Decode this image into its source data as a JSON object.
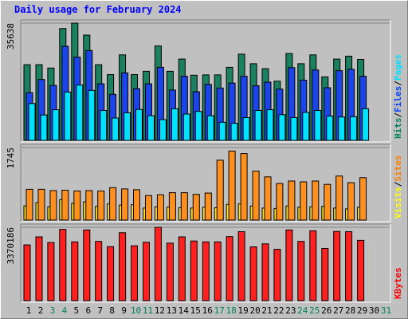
{
  "title": "Daily usage for February 2024",
  "chart_data": [
    {
      "type": "bar",
      "panel": "hits-files-pages",
      "max_label": "35638",
      "ylim": [
        0,
        35638
      ],
      "categories": [
        "1",
        "2",
        "3",
        "4",
        "5",
        "6",
        "7",
        "8",
        "9",
        "10",
        "11",
        "12",
        "13",
        "14",
        "15",
        "16",
        "17",
        "18",
        "19",
        "20",
        "21",
        "22",
        "23",
        "24",
        "25",
        "26",
        "27",
        "28",
        "29",
        "30",
        "31"
      ],
      "weekend_days": [
        "3",
        "4",
        "10",
        "11",
        "17",
        "18",
        "24",
        "25",
        "31"
      ],
      "legend": [
        {
          "text": "Hits",
          "color": "#00805c"
        },
        {
          "text": "/",
          "color": "#000000"
        },
        {
          "text": "Files",
          "color": "#0040ff"
        },
        {
          "text": "/",
          "color": "#000000"
        },
        {
          "text": "Pages",
          "color": "#00e0ff"
        }
      ],
      "series": [
        {
          "name": "Hits",
          "color": "#1a8060",
          "values": [
            23000,
            23000,
            22000,
            34000,
            35638,
            32000,
            23000,
            20000,
            26000,
            20000,
            21000,
            28700,
            21000,
            24700,
            19800,
            19900,
            19900,
            22200,
            26200,
            23300,
            21800,
            18000,
            26400,
            23300,
            26000,
            19300,
            24700,
            25600,
            24600,
            0,
            0
          ]
        },
        {
          "name": "Files",
          "color": "#1b45e8",
          "values": [
            14500,
            18500,
            16700,
            28600,
            25300,
            27300,
            17200,
            14000,
            20500,
            15700,
            17200,
            22200,
            15300,
            19500,
            14800,
            17000,
            15900,
            17400,
            19500,
            16600,
            17700,
            15600,
            22100,
            18300,
            21400,
            16000,
            21200,
            21600,
            19500,
            0,
            0
          ]
        },
        {
          "name": "Pages",
          "color": "#00e0ff",
          "values": [
            11200,
            7700,
            9300,
            14700,
            16800,
            15200,
            9100,
            6800,
            8400,
            9400,
            7500,
            6300,
            9600,
            8000,
            8800,
            7500,
            5500,
            5200,
            6900,
            9100,
            9300,
            7800,
            6900,
            8500,
            9100,
            7400,
            7100,
            7200,
            9600,
            0,
            0
          ]
        }
      ]
    },
    {
      "type": "bar",
      "panel": "visits-sites",
      "max_label": "1745",
      "ylim": [
        0,
        1745
      ],
      "legend": [
        {
          "text": "Visits",
          "color": "#ffff00"
        },
        {
          "text": "/",
          "color": "#000000"
        },
        {
          "text": "Sites",
          "color": "#ff8000"
        }
      ],
      "series": [
        {
          "name": "Visits",
          "color": "#ffe020",
          "values": [
            340,
            420,
            320,
            490,
            400,
            440,
            330,
            390,
            360,
            370,
            290,
            320,
            310,
            300,
            290,
            310,
            300,
            380,
            390,
            340,
            290,
            280,
            340,
            310,
            320,
            330,
            290,
            270,
            310,
            0,
            0
          ]
        },
        {
          "name": "Sites",
          "color": "#ff9020",
          "values": [
            740,
            740,
            710,
            720,
            700,
            710,
            700,
            780,
            750,
            730,
            590,
            610,
            660,
            660,
            620,
            650,
            1440,
            1660,
            1600,
            1180,
            1040,
            880,
            940,
            920,
            940,
            860,
            1060,
            900,
            1020,
            0,
            0
          ]
        }
      ]
    },
    {
      "type": "bar",
      "panel": "kbytes",
      "max_label": "3370186",
      "ylim": [
        0,
        3370186
      ],
      "legend": [
        {
          "text": "KBytes",
          "color": "#ff0000"
        }
      ],
      "series": [
        {
          "name": "KBytes",
          "color": "#ff2020",
          "values": [
            2560000,
            2930000,
            2670000,
            3270000,
            2700000,
            3250000,
            2720000,
            2480000,
            3120000,
            2520000,
            2680000,
            3370186,
            2640000,
            2930000,
            2740000,
            2700000,
            2700000,
            2940000,
            3170000,
            2470000,
            2610000,
            2360000,
            3250000,
            2720000,
            3210000,
            2400000,
            3180000,
            3170000,
            2770000,
            0,
            0
          ]
        }
      ]
    }
  ]
}
